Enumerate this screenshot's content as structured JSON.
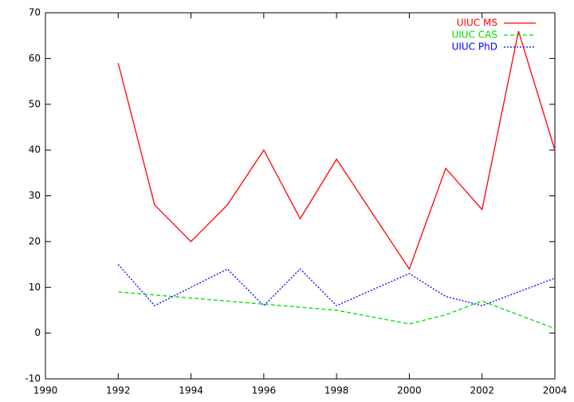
{
  "chart_data": {
    "type": "line",
    "xlim": [
      1990,
      2004
    ],
    "xticks": [
      1990,
      1992,
      1994,
      1996,
      1998,
      2000,
      2002,
      2004
    ],
    "ylim": [
      -10,
      70
    ],
    "yticks": [
      -10,
      0,
      10,
      20,
      30,
      40,
      50,
      60,
      70
    ],
    "grid": false,
    "legend": "top-right",
    "series": [
      {
        "name": "UIUC MS",
        "color": "#ff0000",
        "dash": "solid",
        "x": [
          1992,
          1993,
          1994,
          1995,
          1996,
          1997,
          1998,
          2000,
          2001,
          2002,
          2003,
          2004
        ],
        "values": [
          59,
          28,
          20,
          28,
          40,
          25,
          38,
          14,
          36,
          27,
          66,
          40
        ]
      },
      {
        "name": "UIUC CAS",
        "color": "#00dd00",
        "dash": "dashed",
        "x": [
          1992,
          1998,
          2000,
          2001,
          2002,
          2004
        ],
        "values": [
          9,
          5,
          2,
          4,
          7,
          1
        ]
      },
      {
        "name": "UIUC PhD",
        "color": "#0000ff",
        "dash": "dotted",
        "x": [
          1992,
          1993,
          1995,
          1996,
          1997,
          1998,
          2000,
          2001,
          2002,
          2004
        ],
        "values": [
          15,
          6,
          14,
          6,
          14,
          6,
          13,
          8,
          6,
          12
        ]
      }
    ]
  }
}
